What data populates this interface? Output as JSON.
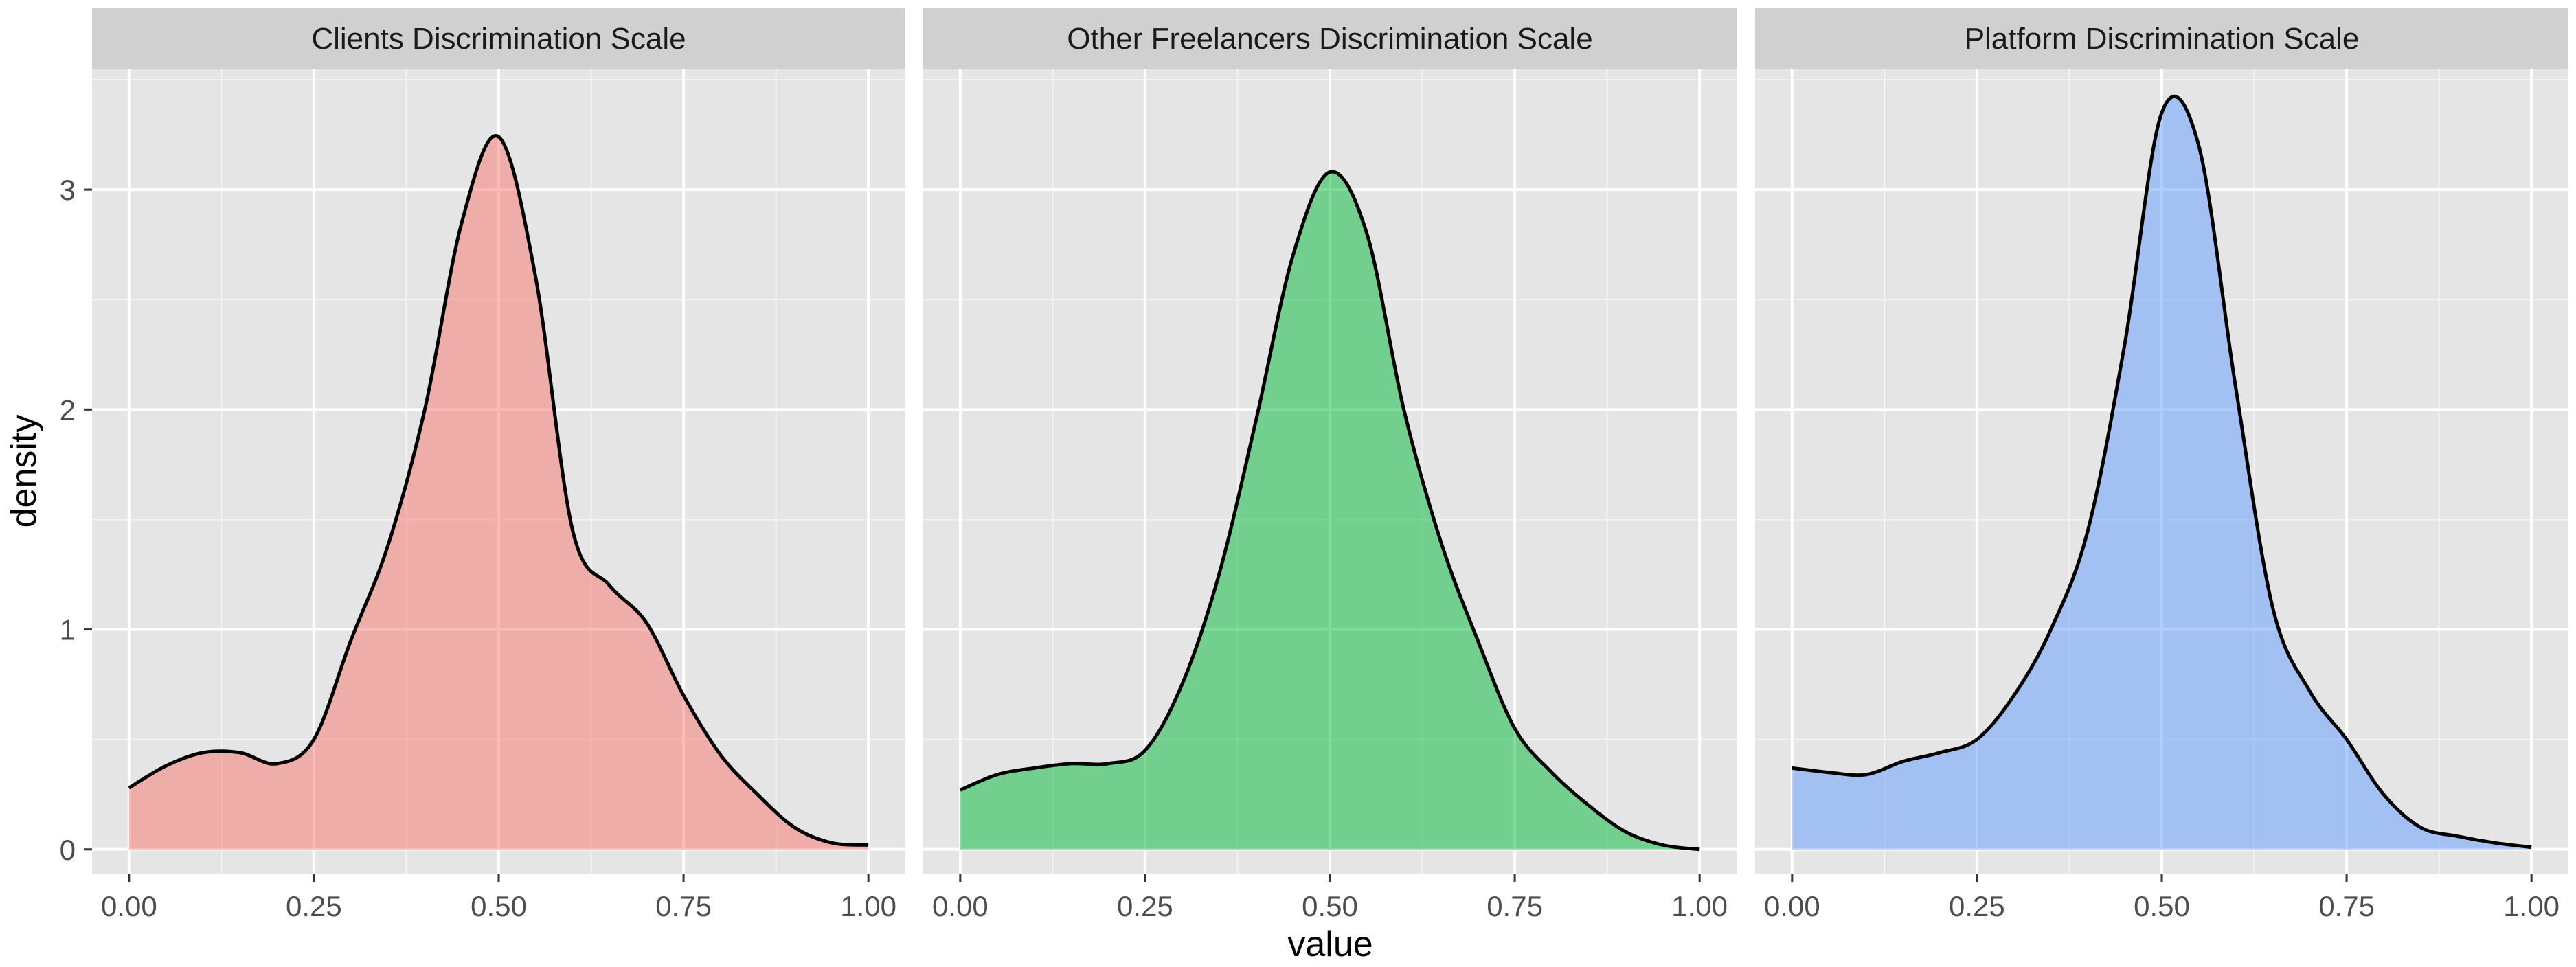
{
  "chart_data": {
    "type": "area",
    "xlabel": "value",
    "ylabel": "density",
    "xlim": [
      -0.05,
      1.05
    ],
    "ylim": [
      -0.11,
      3.55
    ],
    "x_ticks": [
      0.0,
      0.25,
      0.5,
      0.75,
      1.0
    ],
    "x_tick_labels": [
      "0.00",
      "0.25",
      "0.50",
      "0.75",
      "1.00"
    ],
    "y_ticks": [
      0,
      1,
      2,
      3
    ],
    "y_tick_labels": [
      "0",
      "1",
      "2",
      "3"
    ],
    "grid": true,
    "legend": "none",
    "panels": [
      {
        "title": "Clients Discrimination Scale",
        "color": "#F8766D",
        "x": [
          0.0,
          0.05,
          0.1,
          0.15,
          0.2,
          0.25,
          0.3,
          0.35,
          0.4,
          0.45,
          0.5,
          0.55,
          0.6,
          0.65,
          0.7,
          0.75,
          0.8,
          0.85,
          0.9,
          0.95,
          1.0
        ],
        "y": [
          0.28,
          0.38,
          0.44,
          0.44,
          0.39,
          0.5,
          0.95,
          1.38,
          2.0,
          2.85,
          3.24,
          2.6,
          1.45,
          1.2,
          1.03,
          0.7,
          0.43,
          0.25,
          0.1,
          0.03,
          0.02
        ]
      },
      {
        "title": "Other Freelancers Discrimination Scale",
        "color": "#00BA38",
        "x": [
          0.0,
          0.05,
          0.1,
          0.15,
          0.2,
          0.25,
          0.3,
          0.35,
          0.4,
          0.45,
          0.5,
          0.55,
          0.6,
          0.65,
          0.7,
          0.75,
          0.8,
          0.85,
          0.9,
          0.95,
          1.0
        ],
        "y": [
          0.27,
          0.34,
          0.37,
          0.39,
          0.39,
          0.45,
          0.75,
          1.25,
          1.95,
          2.7,
          3.08,
          2.8,
          2.0,
          1.4,
          0.95,
          0.55,
          0.35,
          0.2,
          0.08,
          0.02,
          0.0
        ]
      },
      {
        "title": "Platform Discrimination Scale",
        "color": "#619CFF",
        "x": [
          0.0,
          0.05,
          0.1,
          0.15,
          0.2,
          0.25,
          0.3,
          0.35,
          0.4,
          0.45,
          0.5,
          0.55,
          0.6,
          0.65,
          0.7,
          0.75,
          0.8,
          0.85,
          0.9,
          0.95,
          1.0
        ],
        "y": [
          0.37,
          0.35,
          0.34,
          0.4,
          0.44,
          0.5,
          0.7,
          1.0,
          1.45,
          2.3,
          3.35,
          3.2,
          2.1,
          1.1,
          0.72,
          0.5,
          0.25,
          0.1,
          0.06,
          0.03,
          0.01
        ]
      }
    ]
  }
}
